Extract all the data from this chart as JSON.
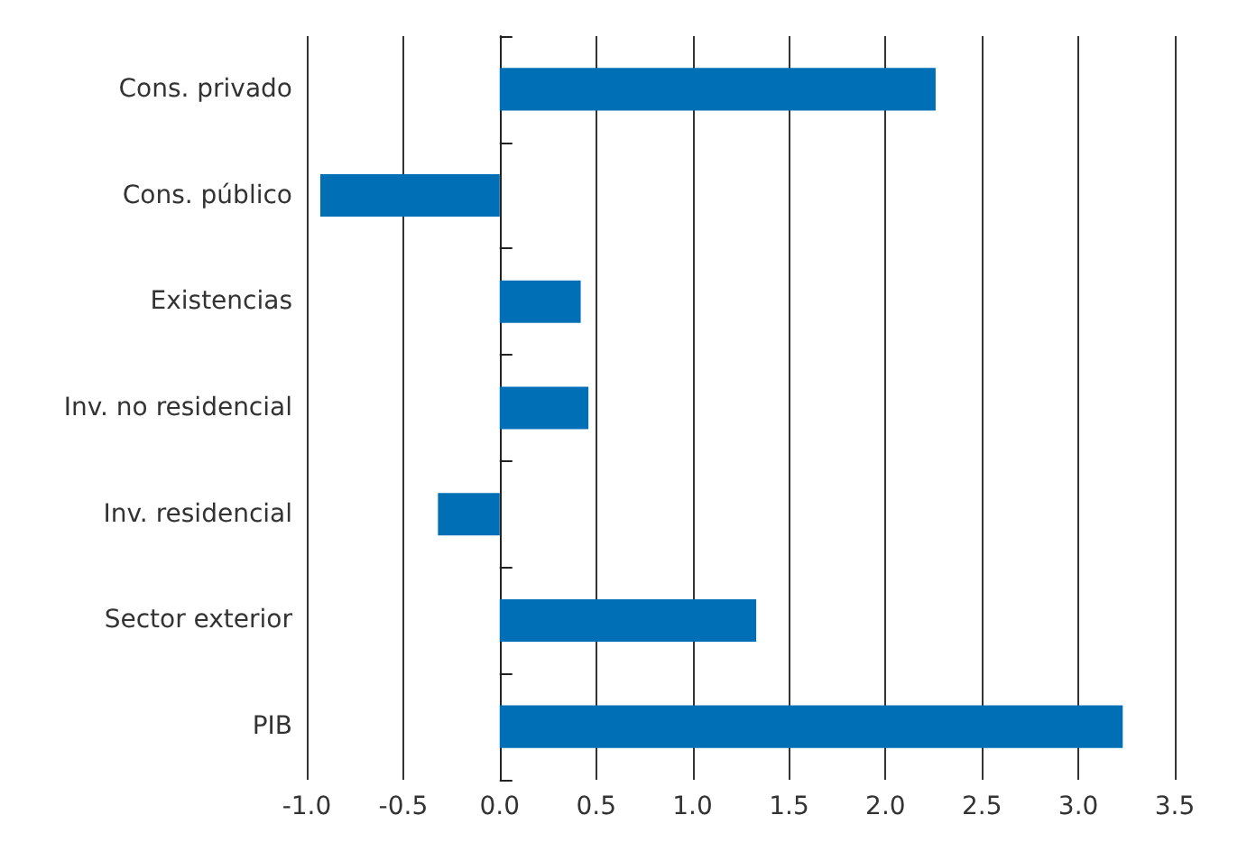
{
  "chart_data": {
    "type": "bar",
    "orientation": "horizontal",
    "categories": [
      "Cons. privado",
      "Cons. público",
      "Existencias",
      "Inv. no residencial",
      "Inv. residencial",
      "Sector exterior",
      "PIB"
    ],
    "values": [
      2.26,
      -0.93,
      0.42,
      0.46,
      -0.32,
      1.33,
      3.23
    ],
    "color": "#006fb6",
    "xlim": [
      -1.0,
      3.5
    ],
    "xticks": [
      {
        "value": -1,
        "label": "-1.0"
      },
      {
        "value": -0.5,
        "label": "-0.5"
      },
      {
        "value": 0,
        "label": "0.0"
      },
      {
        "value": 0.5,
        "label": "0.5"
      },
      {
        "value": 1,
        "label": "1.0"
      },
      {
        "value": 1.5,
        "label": "1.5"
      },
      {
        "value": 2,
        "label": "2.0"
      },
      {
        "value": 2.5,
        "label": "2.5"
      },
      {
        "value": 3,
        "label": "3.0"
      },
      {
        "value": 3.5,
        "label": "3.5"
      }
    ],
    "grid": "x"
  }
}
